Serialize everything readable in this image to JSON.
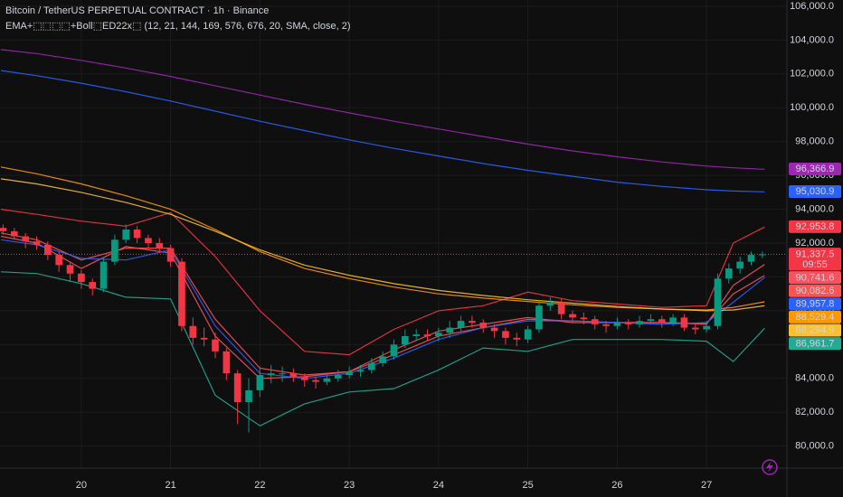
{
  "chart_data": {
    "type": "candlestick",
    "title": "Bitcoin / TetherUS PERPETUAL CONTRACT · 1h · Binance",
    "subtitle": "EMA+⬚⬚⬚⬚+Boll⬚ED22x⬚ (12, 21, 144, 169, 576, 676, 20, SMA, close, 2)",
    "x": [
      19.125,
      19.25,
      19.375,
      19.5,
      19.625,
      19.75,
      19.875,
      20,
      20.125,
      20.25,
      20.375,
      20.5,
      20.625,
      20.75,
      20.875,
      21,
      21.125,
      21.25,
      21.375,
      21.5,
      21.625,
      21.75,
      21.875,
      22,
      22.125,
      22.25,
      22.375,
      22.5,
      22.625,
      22.75,
      22.875,
      23,
      23.125,
      23.25,
      23.375,
      23.5,
      23.625,
      23.75,
      23.875,
      24,
      24.125,
      24.25,
      24.375,
      24.5,
      24.625,
      24.75,
      24.875,
      25,
      25.125,
      25.25,
      25.375,
      25.5,
      25.625,
      25.75,
      25.875,
      26,
      26.125,
      26.25,
      26.375,
      26.5,
      26.625,
      26.75,
      26.875,
      27,
      27.125,
      27.25,
      27.375,
      27.5,
      27.625
    ],
    "open": [
      92900,
      92700,
      92400,
      92100,
      91900,
      91300,
      90700,
      90200,
      89700,
      89300,
      90900,
      92200,
      92800,
      92300,
      92000,
      91700,
      90900,
      87100,
      86400,
      86300,
      85600,
      84300,
      82600,
      83300,
      84200,
      84300,
      84300,
      84100,
      83900,
      83800,
      84000,
      84200,
      84400,
      84500,
      84900,
      85300,
      86000,
      86500,
      86600,
      86500,
      86700,
      87000,
      87400,
      87300,
      87000,
      86800,
      86400,
      86300,
      86900,
      88300,
      88500,
      87800,
      87600,
      87500,
      87200,
      87100,
      87300,
      87200,
      87400,
      87500,
      87300,
      87600,
      87000,
      86900,
      87100,
      89900,
      90500,
      90900,
      91300
    ],
    "high": [
      93100,
      92900,
      92600,
      92400,
      92100,
      91500,
      90900,
      90400,
      89900,
      91100,
      92500,
      93100,
      93000,
      92500,
      92300,
      91900,
      91100,
      87600,
      87000,
      86700,
      85800,
      84500,
      84000,
      84700,
      84800,
      84700,
      84600,
      84300,
      84100,
      84300,
      84500,
      84700,
      84800,
      85200,
      85600,
      86300,
      86900,
      86900,
      86900,
      87000,
      87400,
      87700,
      87700,
      87500,
      87200,
      87000,
      86700,
      87100,
      88600,
      88800,
      88700,
      88000,
      87900,
      87700,
      87400,
      87600,
      87500,
      87700,
      87800,
      87700,
      87800,
      87800,
      87200,
      87400,
      90200,
      90800,
      91200,
      91500,
      91500
    ],
    "low": [
      92500,
      92200,
      91700,
      91600,
      91000,
      90300,
      89700,
      89300,
      88900,
      89100,
      90700,
      92000,
      92000,
      91700,
      91400,
      90600,
      86800,
      86000,
      85900,
      85200,
      83900,
      81300,
      80800,
      82900,
      83700,
      83800,
      83800,
      83500,
      83400,
      83600,
      83800,
      84000,
      84100,
      84300,
      84700,
      85100,
      85800,
      86200,
      86200,
      86200,
      86400,
      86800,
      87000,
      86700,
      86400,
      86000,
      85900,
      86100,
      86700,
      88000,
      87500,
      87300,
      87200,
      86900,
      86700,
      86900,
      86900,
      87000,
      87200,
      87000,
      87100,
      86800,
      86600,
      86700,
      86900,
      89600,
      90200,
      90700,
      91100
    ],
    "close": [
      92700,
      92400,
      92100,
      91900,
      91300,
      90700,
      90200,
      89700,
      89300,
      90900,
      92200,
      92800,
      92300,
      92000,
      91700,
      90900,
      87100,
      86400,
      86300,
      85600,
      84300,
      82600,
      83300,
      84200,
      84300,
      84300,
      84100,
      83900,
      83800,
      84000,
      84200,
      84400,
      84500,
      84900,
      85300,
      86000,
      86500,
      86600,
      86500,
      86700,
      87000,
      87400,
      87300,
      87000,
      86800,
      86400,
      86300,
      86900,
      88300,
      88500,
      87800,
      87600,
      87500,
      87200,
      87100,
      87300,
      87200,
      87400,
      87500,
      87300,
      87600,
      87000,
      86900,
      87100,
      89900,
      90500,
      90900,
      91300,
      91337.5
    ],
    "up_color": "#089981",
    "down_color": "#f23645",
    "last_price_label": "91,337.5",
    "countdown": "09:55",
    "xlim": [
      19.09,
      27.9
    ],
    "xticks": [
      20,
      21,
      22,
      23,
      24,
      25,
      26,
      27
    ],
    "ylim": [
      78700,
      106370
    ],
    "yticks": [
      {
        "value": 80000,
        "label": "80,000.0"
      },
      {
        "value": 82000,
        "label": "82,000.0"
      },
      {
        "value": 84000,
        "label": "84,000.0"
      },
      {
        "value": 86000,
        "label": "86,000.0"
      },
      {
        "value": 88000,
        "label": "88,000.0"
      },
      {
        "value": 90000,
        "label": "90,000.0"
      },
      {
        "value": 92000,
        "label": "92,000.0"
      },
      {
        "value": 94000,
        "label": "94,000.0"
      },
      {
        "value": 96000,
        "label": "96,000.0"
      },
      {
        "value": 98000,
        "label": "98,000.0"
      },
      {
        "value": 100000,
        "label": "100,000.0"
      },
      {
        "value": 102000,
        "label": "102,000.0"
      },
      {
        "value": 104000,
        "label": "104,000.0"
      },
      {
        "value": 106000,
        "label": "106,000.0"
      }
    ],
    "grid": true,
    "lines": {
      "x": [
        19.1,
        19.5,
        20,
        20.5,
        21,
        21.5,
        22,
        22.5,
        23,
        23.5,
        24,
        24.5,
        25,
        25.5,
        26,
        26.5,
        27,
        27.3,
        27.65
      ],
      "series": [
        {
          "color": "#9c27b0",
          "value_label": "96,366.9",
          "values": [
            103440,
            103200,
            102800,
            102350,
            101850,
            101300,
            100750,
            100200,
            99700,
            99200,
            98750,
            98300,
            97850,
            97450,
            97100,
            96800,
            96550,
            96450,
            96366.9
          ]
        },
        {
          "color": "#2962ff",
          "value_label": "95,030.9",
          "values": [
            102200,
            101900,
            101450,
            100950,
            100400,
            99800,
            99200,
            98650,
            98100,
            97600,
            97150,
            96700,
            96300,
            95950,
            95600,
            95350,
            95150,
            95080,
            95030.9
          ]
        },
        {
          "color": "#f23645",
          "value_label": "92,953.8",
          "values": [
            94000,
            93700,
            93300,
            93000,
            93800,
            91200,
            88000,
            85600,
            85400,
            86900,
            88000,
            88300,
            89100,
            88600,
            88400,
            88200,
            88300,
            92000,
            92953.8
          ]
        },
        {
          "color": "#f7525f",
          "value_label": "90,741.6",
          "values": [
            92400,
            92000,
            90500,
            91800,
            91400,
            86500,
            84000,
            84100,
            84400,
            85700,
            86800,
            87200,
            87600,
            87300,
            87300,
            87300,
            87200,
            89500,
            90741.6
          ]
        },
        {
          "color": "#ff5252",
          "value_label": "90,082.6",
          "values": [
            92600,
            92200,
            91000,
            91700,
            91700,
            87500,
            84600,
            84200,
            84400,
            85400,
            86500,
            87000,
            87500,
            87400,
            87300,
            87300,
            87250,
            89000,
            90082.6
          ]
        },
        {
          "color": "#2962ff",
          "value_label": "89,957.8",
          "values": [
            92200,
            91900,
            91100,
            91000,
            91600,
            87100,
            84300,
            84000,
            84300,
            85200,
            86300,
            87000,
            87400,
            87400,
            87300,
            87200,
            87300,
            88500,
            89957.8
          ]
        },
        {
          "color": "#ff9800",
          "value_label": "88,529.4",
          "values": [
            96500,
            96100,
            95500,
            94800,
            94000,
            92800,
            91500,
            90500,
            89900,
            89400,
            89000,
            88750,
            88550,
            88350,
            88200,
            88100,
            88050,
            88200,
            88529.4
          ]
        },
        {
          "color": "#fbc02d",
          "value_label": "88,294.9",
          "values": [
            95800,
            95500,
            95000,
            94400,
            93700,
            92700,
            91600,
            90700,
            90100,
            89600,
            89200,
            88900,
            88650,
            88450,
            88250,
            88100,
            88000,
            88050,
            88294.9
          ]
        },
        {
          "color": "#22ab94",
          "value_label": "86,961.7",
          "values": [
            90300,
            90200,
            89600,
            88800,
            88700,
            83000,
            81200,
            82500,
            83200,
            83400,
            84500,
            85800,
            85600,
            86300,
            86300,
            86300,
            86200,
            85000,
            86961.7
          ]
        }
      ]
    }
  }
}
